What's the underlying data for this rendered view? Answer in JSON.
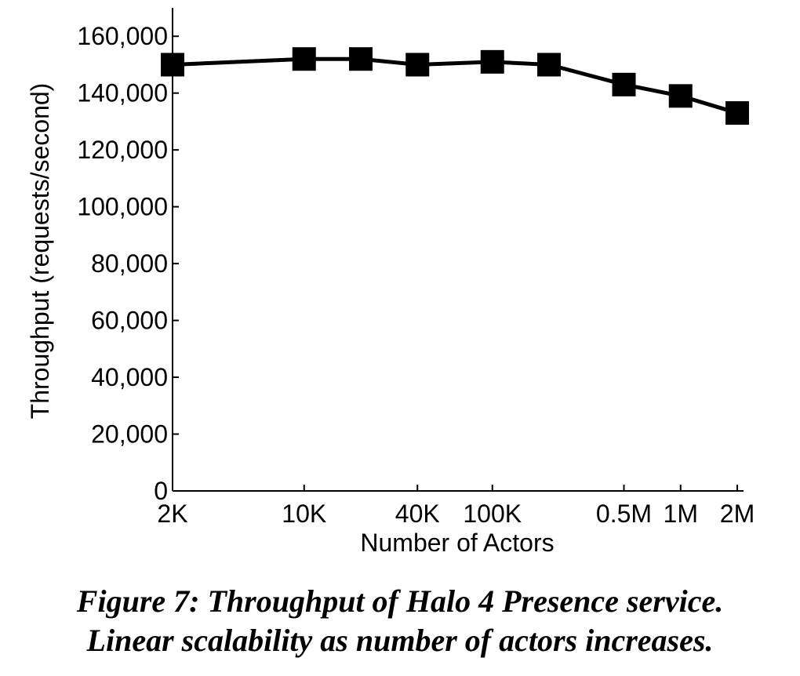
{
  "chart_data": {
    "type": "line",
    "x": [
      "2K",
      "10K",
      "20K",
      "40K",
      "100K",
      "200K",
      "0.5M",
      "1M",
      "2M"
    ],
    "x_actors": [
      2000,
      10000,
      20000,
      40000,
      100000,
      200000,
      500000,
      1000000,
      2000000
    ],
    "x_scale": "log",
    "xticks": [
      "2K",
      "10K",
      "40K",
      "100K",
      "0.5M",
      "1M",
      "2M"
    ],
    "xtick_values": [
      2000,
      10000,
      40000,
      100000,
      500000,
      1000000,
      2000000
    ],
    "series": [
      {
        "values": [
          150000,
          152000,
          152000,
          150000,
          151000,
          150000,
          143000,
          139000,
          133000
        ]
      }
    ],
    "xlabel": "Number of Actors",
    "ylabel": "Throughput (requests/second)",
    "ylim": [
      0,
      170000
    ],
    "yticks": [
      0,
      20000,
      40000,
      60000,
      80000,
      100000,
      120000,
      140000,
      160000
    ],
    "ytick_labels": [
      "0",
      "20,000",
      "40,000",
      "60,000",
      "80,000",
      "100,000",
      "120,000",
      "140,000",
      "160,000"
    ],
    "grid": false,
    "marker": "square",
    "line_color": "#000000"
  },
  "caption": {
    "line1": "Figure 7: Throughput of Halo 4 Presence service.",
    "line2": "Linear scalability as number of actors increases."
  }
}
